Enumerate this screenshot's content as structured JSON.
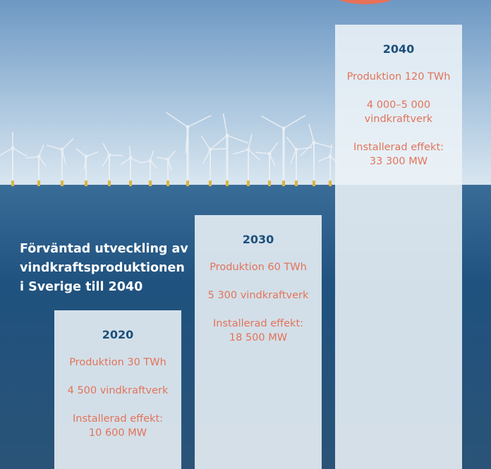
{
  "headline": "Förväntad utveckling av\nvindkraftsproduktionen\ni Sverige till 2040",
  "colors": {
    "sky_top": "#6f9ac4",
    "sea": "#1d4f7d",
    "bar_fill": "#ecf2f7",
    "year_text": "#1c4f7c",
    "stat_text": "#e2735a",
    "accent": "#e87158"
  },
  "chart_data": {
    "type": "bar",
    "title": "Förväntad utveckling av vindkraftsproduktionen i Sverige till 2040",
    "categories": [
      "2020",
      "2030",
      "2040"
    ],
    "series": [
      {
        "name": "Produktion (TWh)",
        "values": [
          30,
          60,
          120
        ]
      }
    ],
    "bars": [
      {
        "year": "2020",
        "production": "Produktion 30 TWh",
        "turbines": "4 500 vindkraftverk",
        "capacity": "Installerad effekt:\n10 600 MW"
      },
      {
        "year": "2030",
        "production": "Produktion 60 TWh",
        "turbines": "5 300 vindkraftverk",
        "capacity": "Installerad effekt:\n18 500 MW"
      },
      {
        "year": "2040",
        "production": "Produktion 120 TWh",
        "turbines": "4 000–5 000\nvindkraftverk",
        "capacity": "Installerad effekt:\n33 300 MW"
      }
    ],
    "ylim": [
      0,
      135
    ]
  }
}
